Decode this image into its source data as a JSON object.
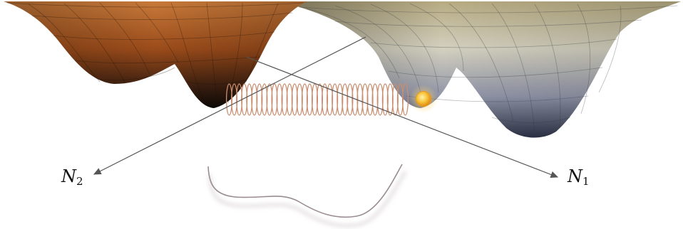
{
  "labels": {
    "n2": {
      "main": "N",
      "sub": "2"
    },
    "n1": {
      "main": "N",
      "sub": "1"
    }
  },
  "colors": {
    "left_surface_light": "#c87a3a",
    "left_surface_dark": "#0d0906",
    "right_surface_light": "#c8c29f",
    "right_surface_dark": "#2c3146",
    "spring": "#c98d6f",
    "ball_outer": "#f2a017",
    "ball_inner": "#fff3a8",
    "arrows": "#555555",
    "curve": "#9a8c94"
  },
  "icons": {
    "particle": "glowing-ball-icon",
    "coupling": "spring-coil-icon"
  }
}
